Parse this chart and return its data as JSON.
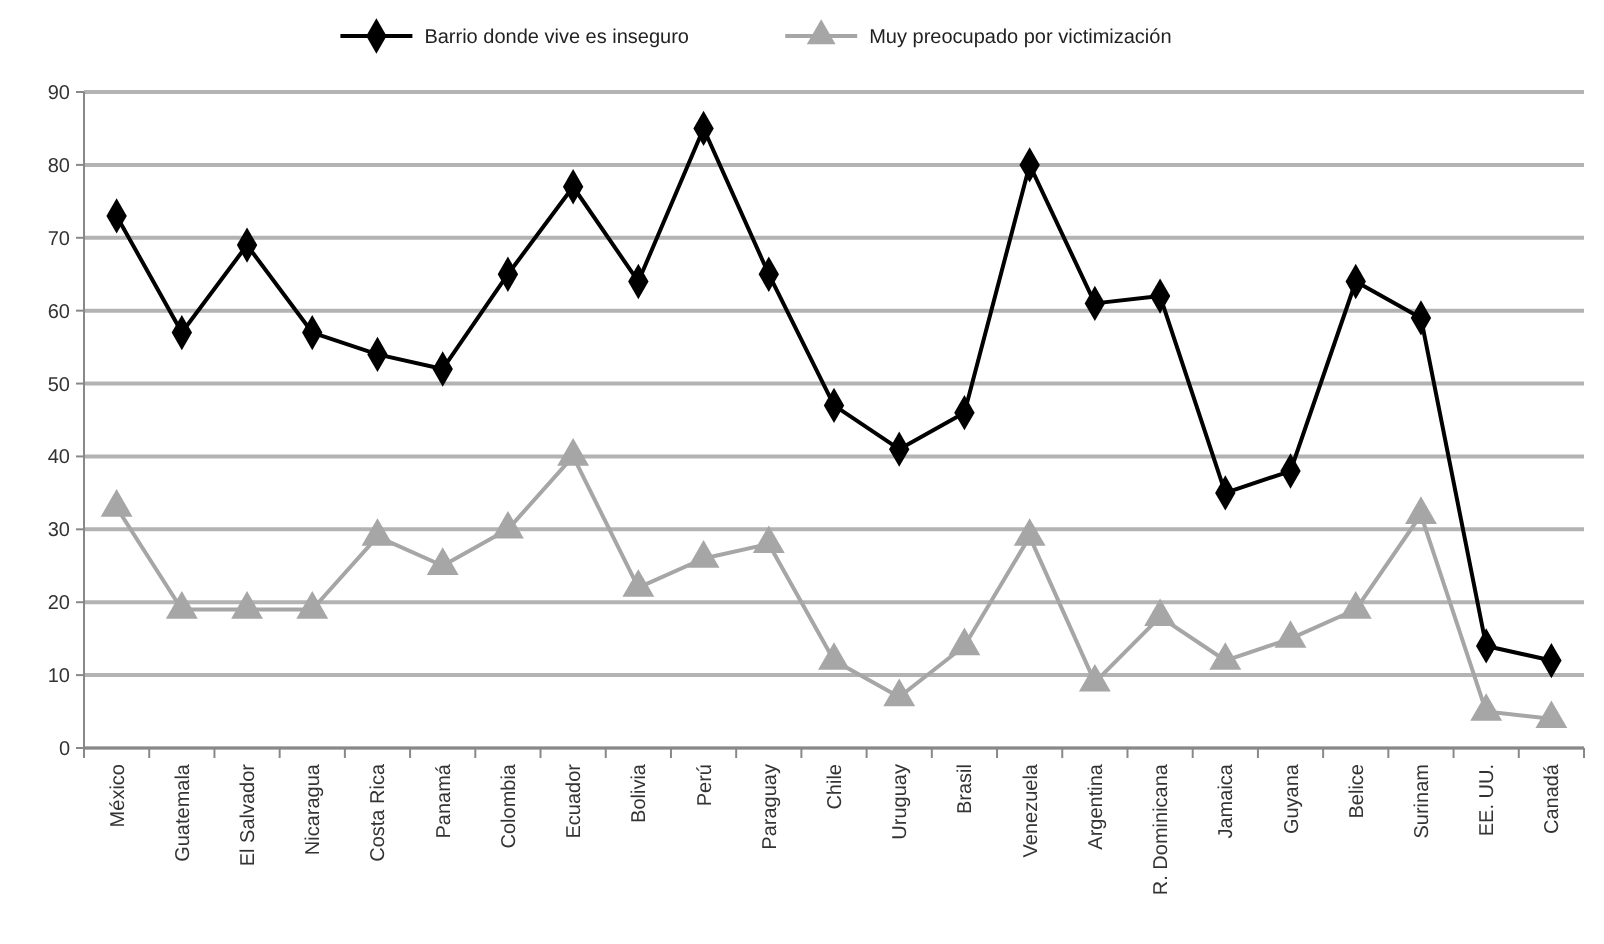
{
  "chart_data": {
    "type": "line",
    "categories": [
      "México",
      "Guatemala",
      "El Salvador",
      "Nicaragua",
      "Costa Rica",
      "Panamá",
      "Colombia",
      "Ecuador",
      "Bolivia",
      "Perú",
      "Paraguay",
      "Chile",
      "Uruguay",
      "Brasil",
      "Venezuela",
      "Argentina",
      "R. Dominicana",
      "Jamaica",
      "Guyana",
      "Belice",
      "Surinam",
      "EE. UU.",
      "Canadá"
    ],
    "series": [
      {
        "name": "Barrio donde vive es inseguro",
        "color": "#000000",
        "marker": "diamond",
        "values": [
          73,
          57,
          69,
          57,
          54,
          52,
          65,
          77,
          64,
          85,
          65,
          47,
          41,
          46,
          80,
          61,
          62,
          35,
          38,
          64,
          59,
          14,
          12
        ]
      },
      {
        "name": "Muy preocupado por victimización",
        "color": "#a6a6a6",
        "marker": "triangle",
        "values": [
          33,
          19,
          19,
          19,
          29,
          25,
          30,
          40,
          22,
          26,
          28,
          12,
          7,
          14,
          29,
          9,
          18,
          12,
          15,
          19,
          32,
          5,
          4
        ]
      }
    ],
    "ylim": [
      0,
      90
    ],
    "yticks": [
      0,
      10,
      20,
      30,
      40,
      50,
      60,
      70,
      80,
      90
    ],
    "grid": "y",
    "legend": "top",
    "line_style": "solid"
  }
}
